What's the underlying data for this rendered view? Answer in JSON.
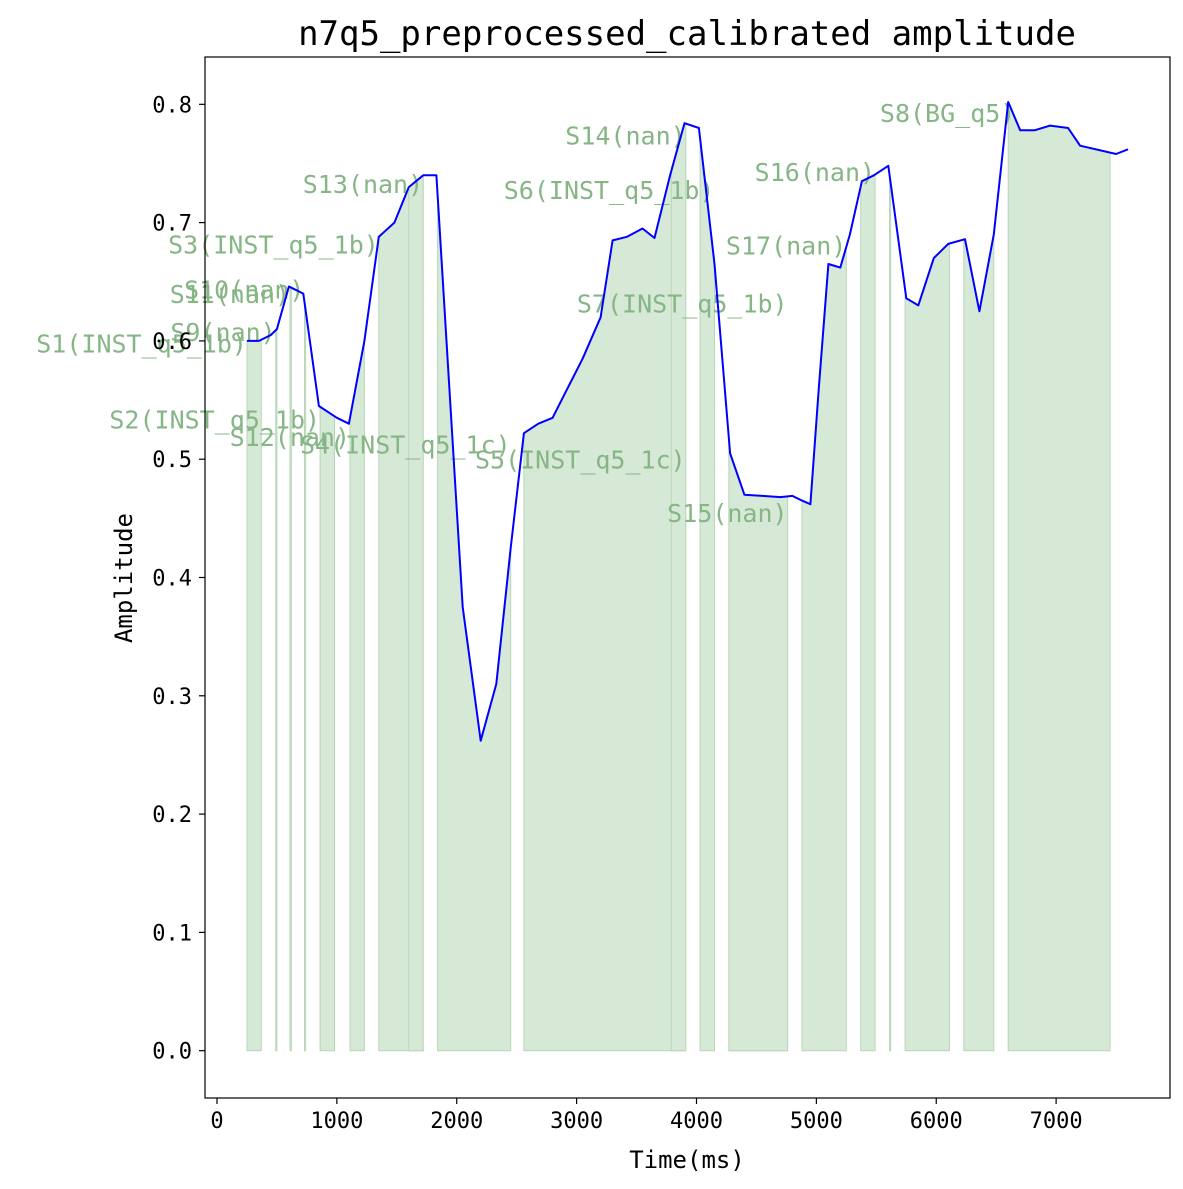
{
  "chart_data": {
    "type": "area",
    "title": "n7q5_preprocessed_calibrated amplitude",
    "xlabel": "Time(ms)",
    "ylabel": "Amplitude",
    "xlim": [
      -100,
      7950
    ],
    "ylim": [
      -0.04,
      0.84
    ],
    "xticks": [
      0,
      1000,
      2000,
      3000,
      4000,
      5000,
      6000,
      7000
    ],
    "yticks": [
      0.0,
      0.1,
      0.2,
      0.3,
      0.4,
      0.5,
      0.6,
      0.7,
      0.8
    ],
    "ytick_labels": [
      "0.0",
      "0.1",
      "0.2",
      "0.3",
      "0.4",
      "0.5",
      "0.6",
      "0.7",
      "0.8"
    ],
    "grid": false,
    "colors": {
      "line": "#0000ff",
      "fill": "#d6e8d6",
      "fill_edge": "#b9d6b9",
      "label": "#86b586"
    },
    "line": {
      "x": [
        250,
        350,
        450,
        500,
        600,
        620,
        720,
        850,
        1000,
        1100,
        1230,
        1350,
        1480,
        1600,
        1720,
        1830,
        2050,
        2200,
        2330,
        2450,
        2560,
        2680,
        2800,
        2900,
        3050,
        3200,
        3300,
        3420,
        3550,
        3650,
        3780,
        3900,
        4020,
        4150,
        4280,
        4400,
        4550,
        4700,
        4800,
        4880,
        4950,
        5020,
        5100,
        5200,
        5280,
        5380,
        5480,
        5600,
        5750,
        5850,
        5980,
        6100,
        6240,
        6360,
        6480,
        6600,
        6700,
        6820,
        6950,
        7100,
        7200,
        7500,
        7600
      ],
      "y": [
        0.6,
        0.6,
        0.605,
        0.61,
        0.646,
        0.645,
        0.64,
        0.545,
        0.535,
        0.53,
        0.6,
        0.688,
        0.7,
        0.73,
        0.74,
        0.74,
        0.375,
        0.262,
        0.31,
        0.425,
        0.522,
        0.53,
        0.535,
        0.555,
        0.585,
        0.62,
        0.685,
        0.688,
        0.695,
        0.687,
        0.74,
        0.784,
        0.78,
        0.665,
        0.505,
        0.47,
        0.469,
        0.468,
        0.469,
        0.465,
        0.462,
        0.56,
        0.665,
        0.662,
        0.69,
        0.735,
        0.74,
        0.748,
        0.636,
        0.63,
        0.67,
        0.682,
        0.686,
        0.625,
        0.69,
        0.802,
        0.778,
        0.778,
        0.782,
        0.78,
        0.765,
        0.758,
        0.762
      ]
    },
    "segments": [
      {
        "label": "S1(INST_q5_1b)",
        "start": 250,
        "end": 370
      },
      {
        "label": "S9(nan)",
        "start": 490,
        "end": 500
      },
      {
        "label": "S11(nan)",
        "start": 610,
        "end": 620
      },
      {
        "label": "S10(nan)",
        "start": 730,
        "end": 740
      },
      {
        "label": "S2(INST_q5_1b)",
        "start": 860,
        "end": 980
      },
      {
        "label": "S12(nan)",
        "start": 1110,
        "end": 1230
      },
      {
        "label": "S3(INST_q5_1b)",
        "start": 1350,
        "end": 1720
      },
      {
        "label": "S13(nan)",
        "start": 1600,
        "end": 1720
      },
      {
        "label": "S4(INST_q5_1c)",
        "start": 1840,
        "end": 2450
      },
      {
        "label": "S5(INST_q5_1c)",
        "start": 2560,
        "end": 3910
      },
      {
        "label": "S14(nan)",
        "start": 3790,
        "end": 3910
      },
      {
        "label": "S6(INST_q5_1b)",
        "start": 4030,
        "end": 4150
      },
      {
        "label": "S7(INST_q5_1b)",
        "start": 4270,
        "end": 4760
      },
      {
        "label": "S15(nan)",
        "start": 4270,
        "end": 4760
      },
      {
        "label": "S17(nan)",
        "start": 4880,
        "end": 5250
      },
      {
        "label": "S16(nan)",
        "start": 5370,
        "end": 5490
      },
      {
        "label": "",
        "start": 5610,
        "end": 5620
      },
      {
        "label": "",
        "start": 5740,
        "end": 6110
      },
      {
        "label": "",
        "start": 6230,
        "end": 6480
      },
      {
        "label": "S8(BG_q5)",
        "start": 6600,
        "end": 7450
      }
    ],
    "segment_labels": [
      {
        "text": "S1(INST_q5_1b)",
        "x": 250,
        "y": 0.59,
        "align": "end"
      },
      {
        "text": "S9(nan)",
        "x": 490,
        "y": 0.6,
        "align": "end"
      },
      {
        "text": "S11(nan)",
        "x": 610,
        "y": 0.632,
        "align": "end"
      },
      {
        "text": "S10(nan)",
        "x": 730,
        "y": 0.636,
        "align": "end"
      },
      {
        "text": "S2(INST_q5_1b)",
        "x": 860,
        "y": 0.526,
        "align": "end"
      },
      {
        "text": "S12(nan)",
        "x": 1110,
        "y": 0.511,
        "align": "end"
      },
      {
        "text": "S3(INST_q5_1b)",
        "x": 1350,
        "y": 0.674,
        "align": "end"
      },
      {
        "text": "S13(nan)",
        "x": 1720,
        "y": 0.725,
        "align": "end"
      },
      {
        "text": "S4(INST_q5_1c)",
        "x": 2450,
        "y": 0.505,
        "align": "end"
      },
      {
        "text": "S5(INST_q5_1c)",
        "x": 3910,
        "y": 0.492,
        "align": "end"
      },
      {
        "text": "S14(nan)",
        "x": 3910,
        "y": 0.766,
        "align": "end"
      },
      {
        "text": "S6(INST_q5_1b)",
        "x": 4150,
        "y": 0.72,
        "align": "end"
      },
      {
        "text": "S7(INST_q5_1b)",
        "x": 4760,
        "y": 0.624,
        "align": "end"
      },
      {
        "text": "S15(nan)",
        "x": 4760,
        "y": 0.447,
        "align": "end"
      },
      {
        "text": "S17(nan)",
        "x": 5250,
        "y": 0.673,
        "align": "end"
      },
      {
        "text": "S16(nan)",
        "x": 5490,
        "y": 0.735,
        "align": "end"
      },
      {
        "text": "S8(BG_q5)",
        "x": 6660,
        "y": 0.785,
        "align": "end"
      }
    ]
  }
}
